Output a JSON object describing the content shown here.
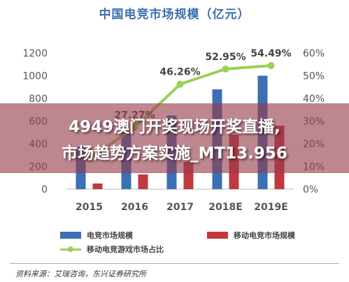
{
  "chart_data": {
    "type": "bar",
    "title": "中国电竞市场规模（亿元）",
    "categories": [
      "2015",
      "2016",
      "2017",
      "2018E",
      "2019E"
    ],
    "series": [
      {
        "name": "电竞市场规模",
        "type": "bar",
        "axis": "left",
        "color": "#3b6fb6",
        "values": [
          374,
          504,
          650,
          880,
          1000
        ]
      },
      {
        "name": "移动电竞市场规模",
        "type": "bar",
        "axis": "left",
        "color": "#c0393f",
        "values": [
          50,
          130,
          240,
          480,
          560
        ]
      },
      {
        "name": "移动电竞游戏市场占比",
        "type": "line",
        "axis": "right",
        "color": "#9bcf5a",
        "values": [
          13.33,
          27.27,
          46.26,
          52.95,
          54.49
        ],
        "labels": [
          "",
          "27.27%",
          "46.26%",
          "52.95%",
          "54.49%"
        ]
      }
    ],
    "y_left": {
      "ticks": [
        0,
        200,
        400,
        600,
        800,
        1000,
        1200
      ],
      "ylim": [
        0,
        1200
      ]
    },
    "y_right": {
      "ticks": [
        "0%",
        "10%",
        "20%",
        "30%",
        "40%",
        "50%",
        "60%"
      ],
      "ylim": [
        0,
        60
      ]
    },
    "legend_position": "bottom"
  },
  "banner": {
    "line1": "4949澳门开奖现场开奖直播,",
    "line2": "市场趋势方案实施_MT13.956"
  },
  "source": "资料来源：艾瑞咨询，东兴证券研究所"
}
